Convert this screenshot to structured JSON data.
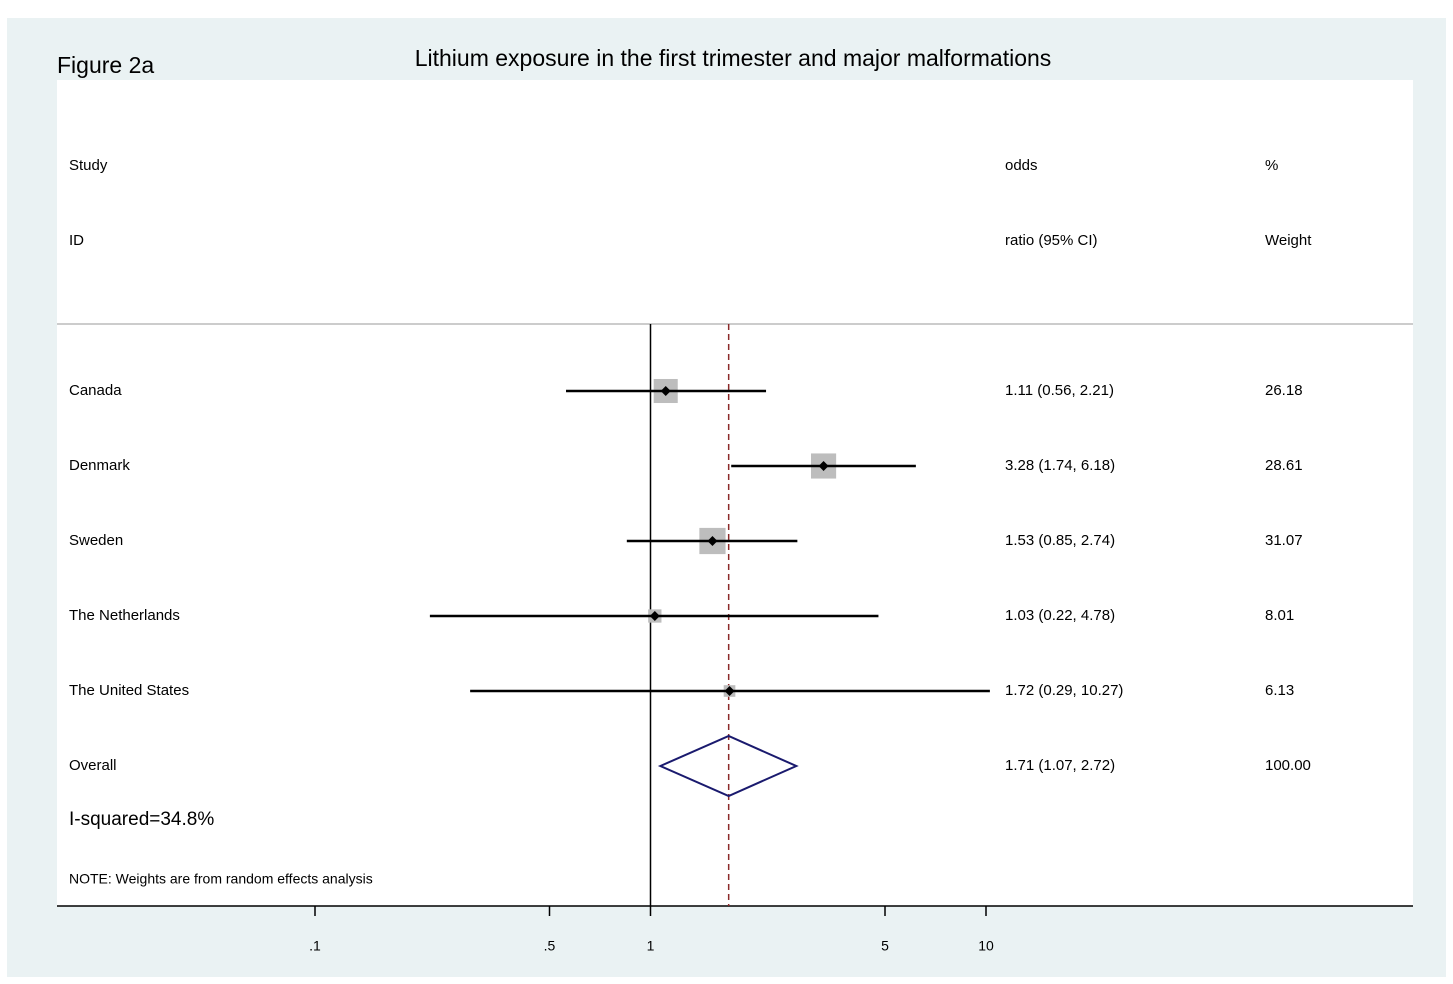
{
  "chart_data": {
    "type": "forest",
    "figure_label": "Figure 2a",
    "title": "Lithium exposure in the first trimester and major malformations",
    "column_headers": {
      "study": [
        "Study",
        "ID"
      ],
      "effect": [
        "odds",
        "ratio (95% CI)"
      ],
      "weight": [
        "%",
        "Weight"
      ]
    },
    "categories": [
      "Canada",
      "Denmark",
      "Sweden",
      "The Netherlands",
      "The United States"
    ],
    "values": [
      1.11,
      3.28,
      1.53,
      1.03,
      1.72
    ],
    "lower": [
      0.56,
      1.74,
      0.85,
      0.22,
      0.29
    ],
    "upper": [
      2.21,
      6.18,
      2.74,
      4.78,
      10.27
    ],
    "ci_labels": [
      "1.11 (0.56, 2.21)",
      "3.28 (1.74, 6.18)",
      "1.53 (0.85, 2.74)",
      "1.03 (0.22, 4.78)",
      "1.72 (0.29, 10.27)"
    ],
    "weights": [
      26.18,
      28.61,
      31.07,
      8.01,
      6.13
    ],
    "overall": {
      "label": "Overall",
      "value": 1.71,
      "lower": 1.07,
      "upper": 2.72,
      "ci_label": "1.71 (1.07, 2.72)",
      "weight": 100,
      "weight_label": "100.00"
    },
    "heterogeneity": "I-squared=34.8%",
    "note": "NOTE: Weights are from random effects analysis",
    "log_scale": true,
    "null_value": 1,
    "xlim": [
      0.1,
      10
    ],
    "xticks": [
      {
        "value": 0.1,
        "label": ".1"
      },
      {
        "value": 0.5,
        "label": ".5"
      },
      1,
      5,
      10
    ],
    "box_color": "#bdbdbd",
    "overall_line_color": "#8b2a2a",
    "diamond_color": "#1a1a6e"
  }
}
